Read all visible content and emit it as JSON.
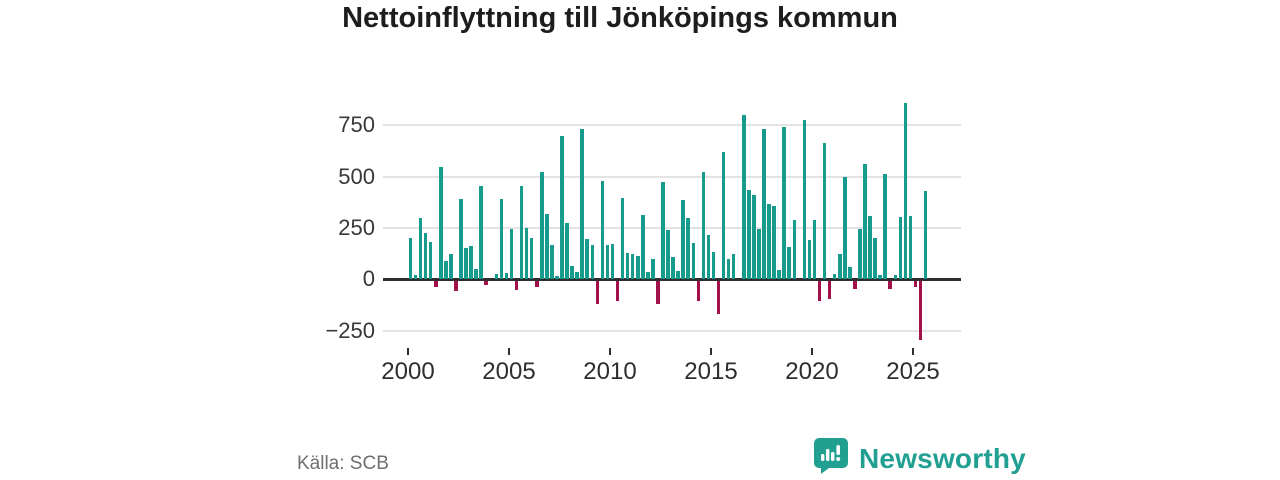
{
  "title": "Nettoinflyttning till Jönköpings kommun",
  "footer": {
    "source": "Källa: SCB",
    "brand": "Newsworthy",
    "brand_icon": "newsworthy-logo-icon",
    "brand_color": "#21a092"
  },
  "chart_data": {
    "type": "bar",
    "title": "Nettoinflyttning till Jönköpings kommun",
    "xlabel": "",
    "ylabel": "",
    "x": [
      "2000Q1",
      "2000Q2",
      "2000Q3",
      "2000Q4",
      "2001Q1",
      "2001Q2",
      "2001Q3",
      "2001Q4",
      "2002Q1",
      "2002Q2",
      "2002Q3",
      "2002Q4",
      "2003Q1",
      "2003Q2",
      "2003Q3",
      "2003Q4",
      "2004Q1",
      "2004Q2",
      "2004Q3",
      "2004Q4",
      "2005Q1",
      "2005Q2",
      "2005Q3",
      "2005Q4",
      "2006Q1",
      "2006Q2",
      "2006Q3",
      "2006Q4",
      "2007Q1",
      "2007Q2",
      "2007Q3",
      "2007Q4",
      "2008Q1",
      "2008Q2",
      "2008Q3",
      "2008Q4",
      "2009Q1",
      "2009Q2",
      "2009Q3",
      "2009Q4",
      "2010Q1",
      "2010Q2",
      "2010Q3",
      "2010Q4",
      "2011Q1",
      "2011Q2",
      "2011Q3",
      "2011Q4",
      "2012Q1",
      "2012Q2",
      "2012Q3",
      "2012Q4",
      "2013Q1",
      "2013Q2",
      "2013Q3",
      "2013Q4",
      "2014Q1",
      "2014Q2",
      "2014Q3",
      "2014Q4",
      "2015Q1",
      "2015Q2",
      "2015Q3",
      "2015Q4",
      "2016Q1",
      "2016Q2",
      "2016Q3",
      "2016Q4",
      "2017Q1",
      "2017Q2",
      "2017Q3",
      "2017Q4",
      "2018Q1",
      "2018Q2",
      "2018Q3",
      "2018Q4",
      "2019Q1",
      "2019Q2",
      "2019Q3",
      "2019Q4",
      "2020Q1",
      "2020Q2",
      "2020Q3",
      "2020Q4",
      "2021Q1",
      "2021Q2",
      "2021Q3",
      "2021Q4",
      "2022Q1",
      "2022Q2",
      "2022Q3",
      "2022Q4",
      "2023Q1",
      "2023Q2",
      "2023Q3",
      "2023Q4",
      "2024Q1",
      "2024Q2",
      "2024Q3",
      "2024Q4",
      "2025Q1",
      "2025Q2",
      "2025Q3"
    ],
    "values": [
      200,
      20,
      300,
      225,
      180,
      -30,
      545,
      90,
      125,
      -50,
      390,
      150,
      160,
      50,
      455,
      -20,
      0,
      25,
      390,
      30,
      245,
      -45,
      455,
      250,
      200,
      -30,
      520,
      320,
      165,
      15,
      700,
      275,
      65,
      35,
      730,
      195,
      165,
      -115,
      480,
      165,
      170,
      -100,
      395,
      130,
      125,
      115,
      315,
      35,
      100,
      -115,
      475,
      240,
      110,
      40,
      385,
      300,
      175,
      -100,
      520,
      215,
      135,
      -160,
      620,
      100,
      125,
      0,
      800,
      435,
      410,
      245,
      730,
      365,
      355,
      45,
      740,
      155,
      290,
      0,
      775,
      190,
      290,
      -100,
      665,
      -90,
      25,
      125,
      500,
      60,
      -40,
      245,
      560,
      310,
      200,
      20,
      515,
      -40,
      20,
      305,
      860,
      310,
      -30,
      -290,
      430
    ],
    "yticks": [
      750,
      500,
      250,
      0,
      -250
    ],
    "ytick_labels": [
      "750",
      "500",
      "250",
      "0",
      "−250"
    ],
    "xticks": [
      2000,
      2005,
      2010,
      2015,
      2020,
      2025
    ],
    "xtick_labels": [
      "2000",
      "2005",
      "2010",
      "2015",
      "2020",
      "2025"
    ],
    "ylim": [
      -330,
      900
    ],
    "grid": "horizontal",
    "legend": "none",
    "colors": {
      "positive": "#169b8c",
      "negative": "#a3114b"
    }
  }
}
